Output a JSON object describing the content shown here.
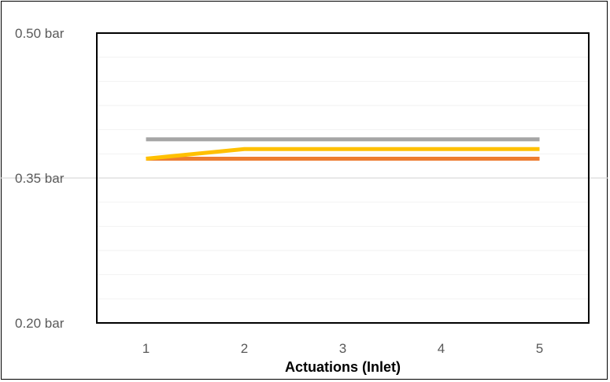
{
  "chart_data": {
    "type": "line",
    "title": "",
    "xlabel": "Actuations (Inlet)",
    "ylabel": "",
    "categories": [
      "1",
      "2",
      "3",
      "4",
      "5"
    ],
    "y_ticks": [
      0.2,
      0.35,
      0.5
    ],
    "y_tick_labels": [
      "0.20 bar",
      "0.35 bar",
      "0.50 bar"
    ],
    "y_unit": "bar",
    "ylim": [
      0.2,
      0.5
    ],
    "y_minor_step": 0.025,
    "grid": true,
    "legend": "none",
    "series": [
      {
        "color": "#A5A5A5",
        "values": [
          0.39,
          0.39,
          0.39,
          0.39,
          0.39
        ]
      },
      {
        "color": "#ED7D31",
        "values": [
          0.37,
          0.37,
          0.37,
          0.37,
          0.37
        ]
      },
      {
        "color": "#FFC000",
        "values": [
          0.37,
          0.38,
          0.38,
          0.38,
          0.38
        ]
      }
    ]
  }
}
